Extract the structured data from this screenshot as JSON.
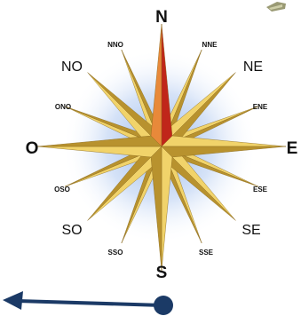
{
  "compass": {
    "labels": {
      "n": "N",
      "s": "S",
      "e": "E",
      "o": "O",
      "ne": "NE",
      "no": "NO",
      "se": "SE",
      "so": "SO",
      "nne": "NNE",
      "nno": "NNO",
      "ene": "ENE",
      "ono": "ONO",
      "ese": "ESE",
      "oso": "OSO",
      "sse": "SSE",
      "sso": "SSO"
    }
  },
  "colors": {
    "glow": "#8fb3e8",
    "north_point_dark": "#c0261a",
    "north_point_light": "#e8893a",
    "star_light": "#f1d36a",
    "star_dark": "#b8922e",
    "arrow": "#1b3a66"
  },
  "arrow": {
    "direction": "left"
  }
}
